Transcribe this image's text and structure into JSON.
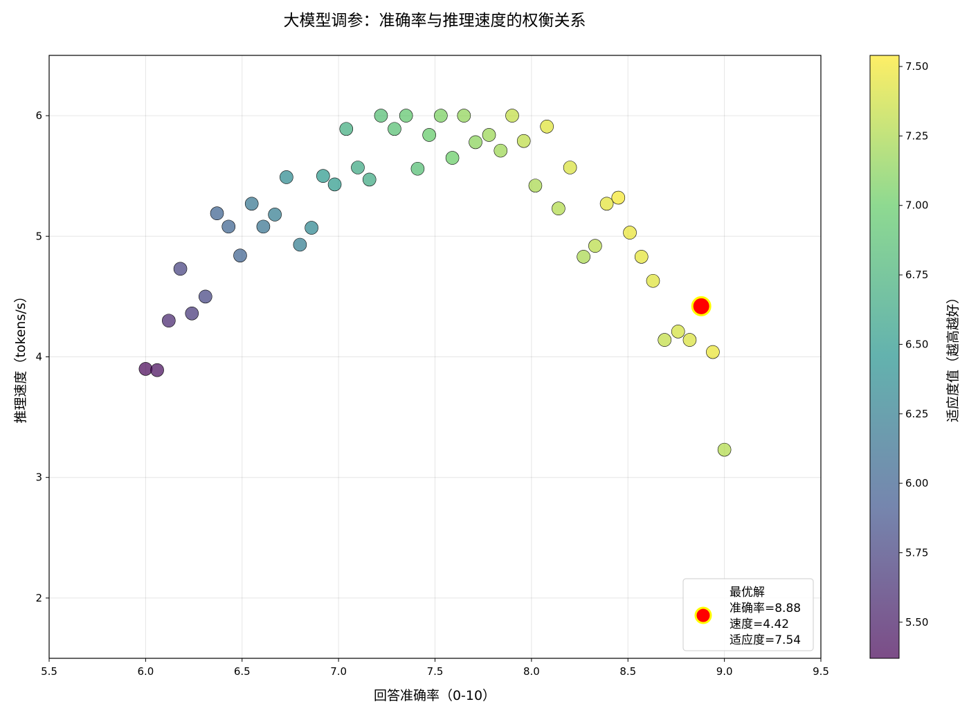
{
  "chart_data": {
    "type": "scatter",
    "title": "大模型调参：准确率与推理速度的权衡关系",
    "xlabel": "回答准确率（0-10）",
    "ylabel": "推理速度（tokens/s）",
    "xlim": [
      5.5,
      9.5
    ],
    "ylim": [
      1.5,
      6.5
    ],
    "xticks": [
      "5.5",
      "6.0",
      "6.5",
      "7.0",
      "7.5",
      "8.0",
      "8.5",
      "9.0",
      "9.5"
    ],
    "yticks": [
      "2",
      "3",
      "4",
      "5",
      "6"
    ],
    "grid": true,
    "colormap": "viridis",
    "colorbar": {
      "label": "适应度值（越高越好）",
      "range": [
        5.37,
        7.54
      ],
      "ticks": [
        "5.50",
        "5.75",
        "6.00",
        "6.25",
        "6.50",
        "6.75",
        "7.00",
        "7.25",
        "7.50"
      ]
    },
    "x": [
      6.0,
      6.06,
      6.12,
      6.18,
      6.24,
      6.31,
      6.37,
      6.43,
      6.49,
      6.55,
      6.61,
      6.67,
      6.73,
      6.8,
      6.86,
      6.92,
      6.98,
      7.04,
      7.1,
      7.16,
      7.22,
      7.29,
      7.35,
      7.41,
      7.47,
      7.53,
      7.59,
      7.65,
      7.71,
      7.78,
      7.84,
      7.9,
      7.96,
      8.02,
      8.08,
      8.14,
      8.2,
      8.27,
      8.33,
      8.39,
      8.45,
      8.51,
      8.57,
      8.63,
      8.69,
      8.76,
      8.82,
      8.88,
      8.94,
      9.0
    ],
    "y": [
      3.9,
      3.89,
      4.3,
      4.73,
      4.36,
      4.5,
      5.19,
      5.08,
      4.84,
      5.27,
      5.08,
      5.18,
      5.49,
      4.93,
      5.07,
      5.5,
      5.43,
      5.89,
      5.57,
      5.47,
      6.0,
      5.89,
      6.0,
      5.56,
      5.84,
      6.0,
      5.65,
      6.0,
      5.78,
      5.84,
      5.71,
      6.0,
      5.79,
      5.42,
      5.91,
      5.23,
      5.57,
      4.83,
      4.92,
      5.27,
      5.32,
      5.03,
      4.83,
      4.63,
      4.14,
      4.21,
      4.14,
      4.42,
      4.04,
      3.23
    ],
    "fitness": [
      5.37,
      5.41,
      5.58,
      5.75,
      5.68,
      5.77,
      6.01,
      6.02,
      6.0,
      6.17,
      6.15,
      6.23,
      6.36,
      6.24,
      6.32,
      6.49,
      6.51,
      6.69,
      6.64,
      6.65,
      6.86,
      6.87,
      6.94,
      6.85,
      6.98,
      7.07,
      7.01,
      7.15,
      7.13,
      7.19,
      7.2,
      7.33,
      7.31,
      7.24,
      7.43,
      7.27,
      7.41,
      7.24,
      7.3,
      7.45,
      7.51,
      7.47,
      7.45,
      7.43,
      7.33,
      7.39,
      7.41,
      7.54,
      7.47,
      7.27
    ],
    "best": {
      "x": 8.88,
      "y": 4.42,
      "color": "#ff0000",
      "edge": "#ffff00"
    },
    "legend": {
      "placement": "lower-right",
      "lines": [
        "最优解",
        "准确率=8.88",
        "速度=4.42",
        "适应度=7.54"
      ]
    }
  }
}
